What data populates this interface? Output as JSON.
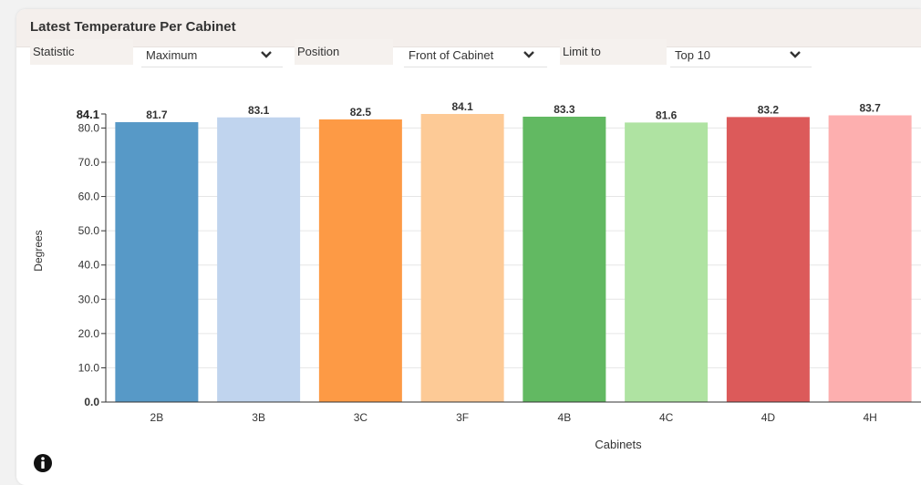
{
  "panel": {
    "title": "Latest Temperature Per Cabinet"
  },
  "filters": {
    "statistic": {
      "label": "Statistic",
      "value": "Maximum"
    },
    "position": {
      "label": "Position",
      "value": "Front of Cabinet"
    },
    "limit": {
      "label": "Limit to",
      "value": "Top 10"
    }
  },
  "icons": {
    "dropdown": "chevron-down-icon",
    "info": "info-icon"
  },
  "chart_data": {
    "type": "bar",
    "title": "",
    "xlabel": "Cabinets",
    "ylabel": "Degrees",
    "categories": [
      "2B",
      "3B",
      "3C",
      "3F",
      "4B",
      "4C",
      "4D",
      "4H"
    ],
    "values": [
      81.7,
      83.1,
      82.5,
      84.1,
      83.3,
      81.6,
      83.2,
      83.7
    ],
    "value_labels": [
      "81.7",
      "83.1",
      "82.5",
      "84.1",
      "83.3",
      "81.6",
      "83.2",
      "83.7"
    ],
    "colors": [
      "#5799c7",
      "#c0d4ee",
      "#fd9a45",
      "#fdca96",
      "#62b962",
      "#afe3a2",
      "#dc5a5a",
      "#fdafaf"
    ],
    "ylim": [
      0,
      84.1
    ],
    "yticks": [
      0,
      10,
      20,
      30,
      40,
      50,
      60,
      70,
      80
    ],
    "ytick_labels": [
      "0.0",
      "10.0",
      "20.0",
      "30.0",
      "40.0",
      "50.0",
      "60.0",
      "70.0",
      "80.0"
    ],
    "ymax_label": "84.1",
    "grid": true,
    "legend": false
  }
}
